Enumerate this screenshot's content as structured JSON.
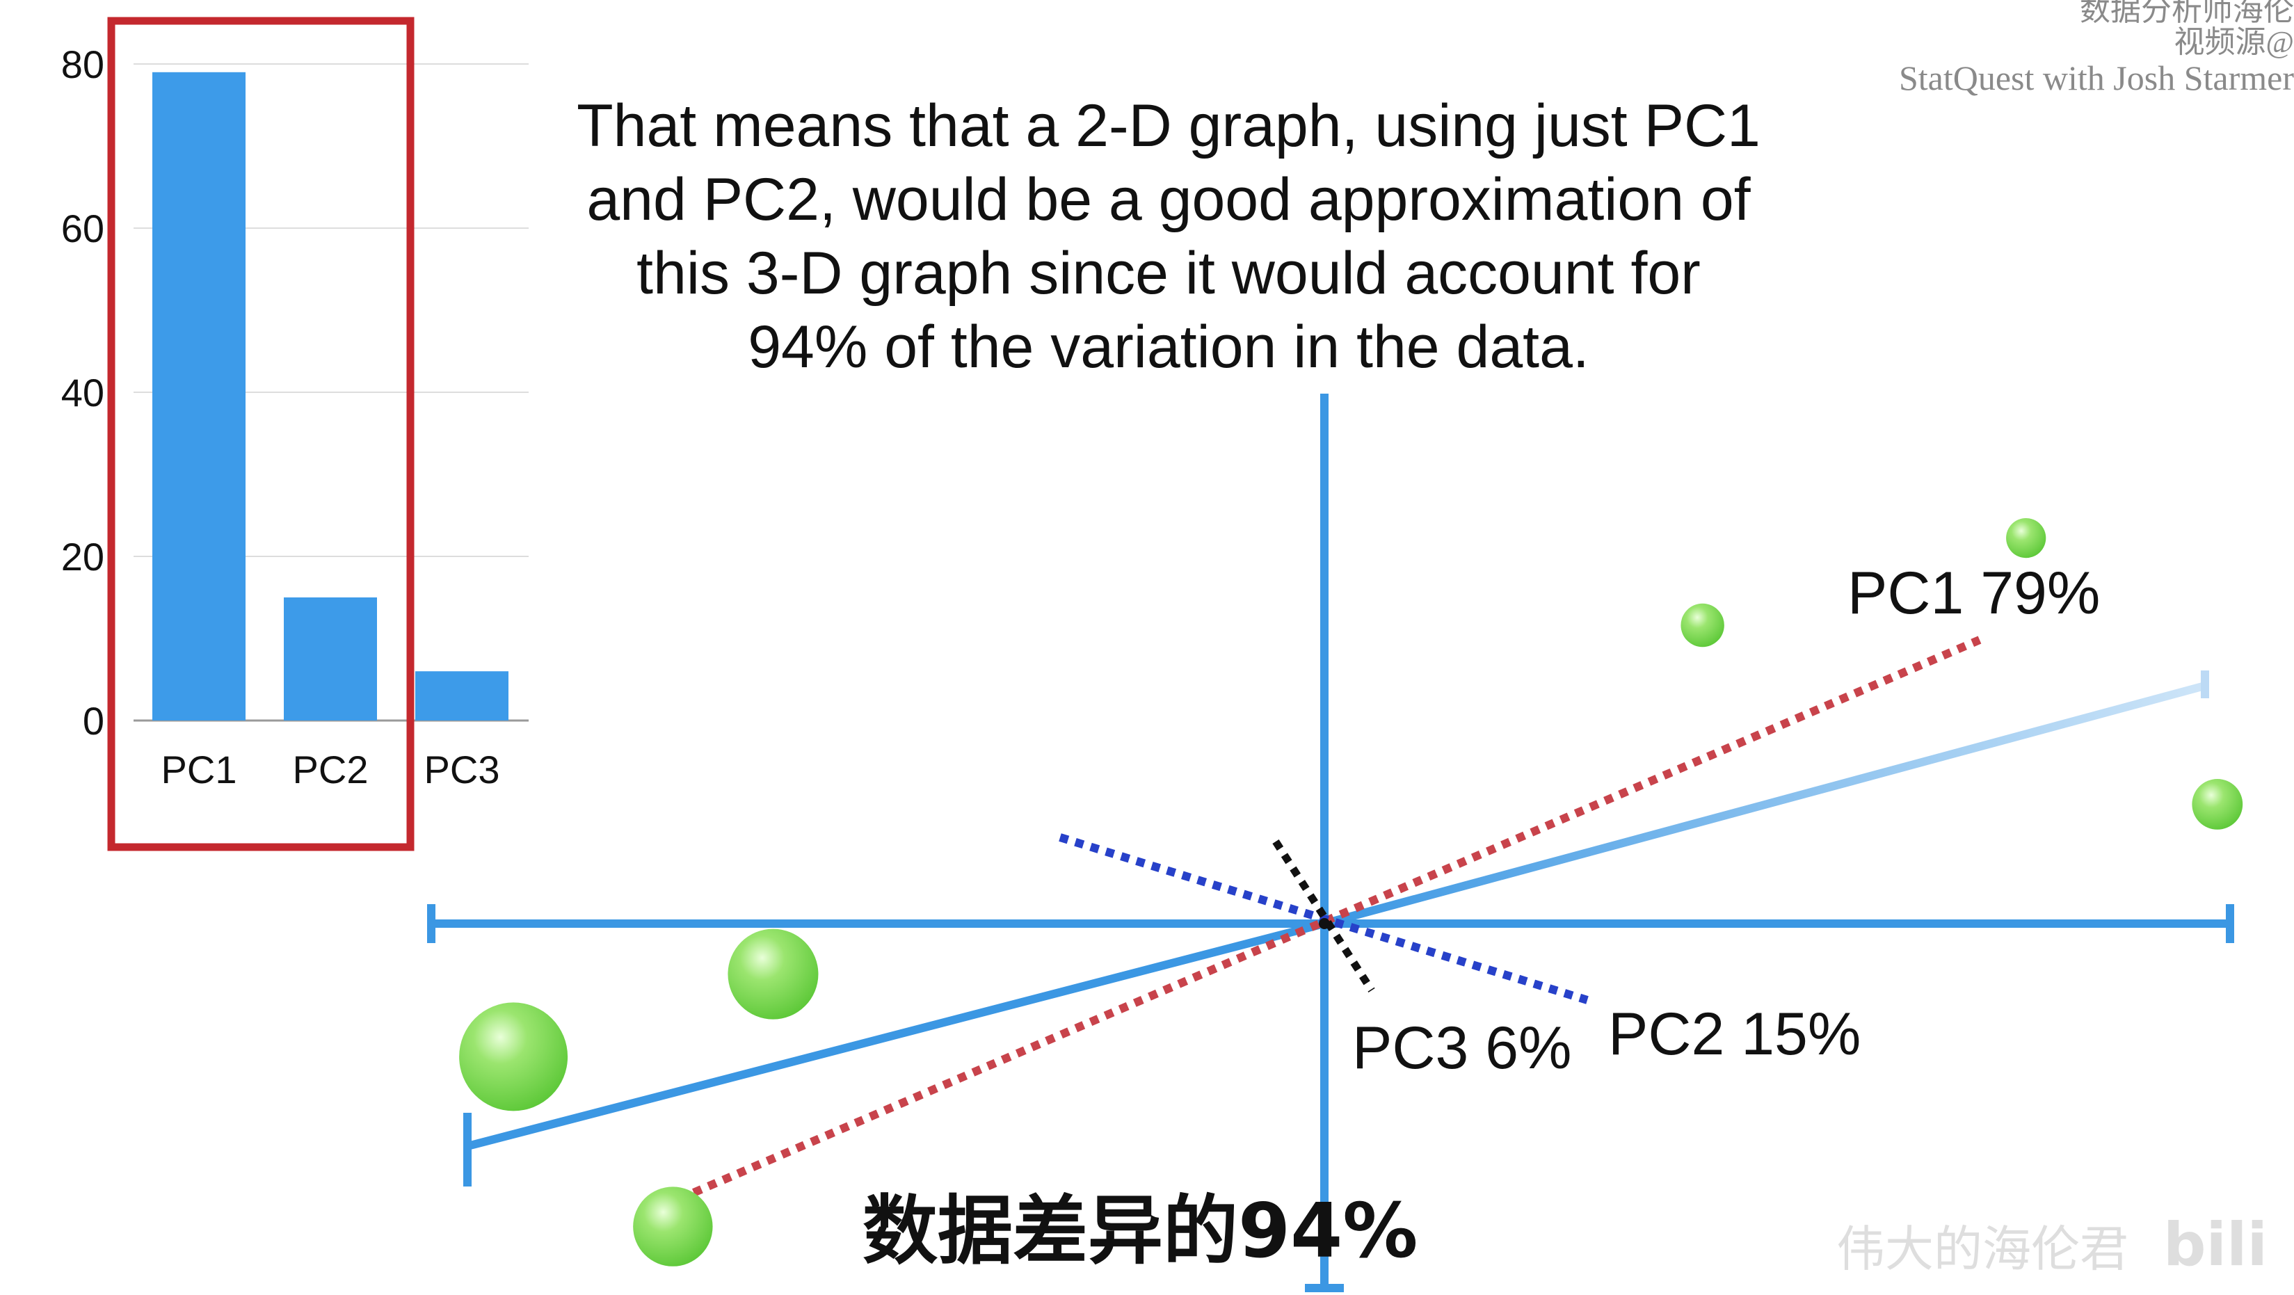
{
  "caption": {
    "line1": "That means that a 2-D graph, using just PC1",
    "line2": "and PC2, would be a good approximation of",
    "line3": "this 3-D graph since it would account for",
    "line4": "94% of the variation in the data."
  },
  "watermark": {
    "line1": "数据分析师海伦",
    "line2": "视频源@",
    "line3": "StatQuest with Josh Starmer"
  },
  "subtitle": "数据差异的94%",
  "channel_watermark": "伟大的海伦君",
  "site_watermark": "bili",
  "colors": {
    "bar": "#3d9be9",
    "highlight_box": "#c4282e",
    "axis": "#3b97e3",
    "pc1_line": "#c8434b",
    "pc2_line": "#2741c9",
    "pc3_line": "#111111",
    "points": "#7ed957"
  },
  "chart_data": [
    {
      "type": "bar",
      "categories": [
        "PC1",
        "PC2",
        "PC3"
      ],
      "values": [
        79,
        15,
        6
      ],
      "ylim": [
        0,
        80
      ],
      "yticks": [
        0,
        20,
        40,
        60,
        80
      ],
      "grid": true,
      "highlighted_categories": [
        "PC1",
        "PC2"
      ]
    },
    {
      "type": "scatter",
      "components": [
        {
          "label": "PC1 79%"
        },
        {
          "label": "PC2 15%"
        },
        {
          "label": "PC3 6%"
        }
      ],
      "points": [
        {
          "x": -1.78,
          "y": -0.29,
          "size": 3
        },
        {
          "x": -1.21,
          "y": -0.11,
          "size": 2.5
        },
        {
          "x": -1.43,
          "y": -0.66,
          "size": 2.2
        },
        {
          "x": 0.83,
          "y": 0.65,
          "size": 1.2
        },
        {
          "x": 1.54,
          "y": 0.84,
          "size": 1.1
        },
        {
          "x": 1.96,
          "y": 0.26,
          "size": 1.4
        }
      ]
    }
  ]
}
